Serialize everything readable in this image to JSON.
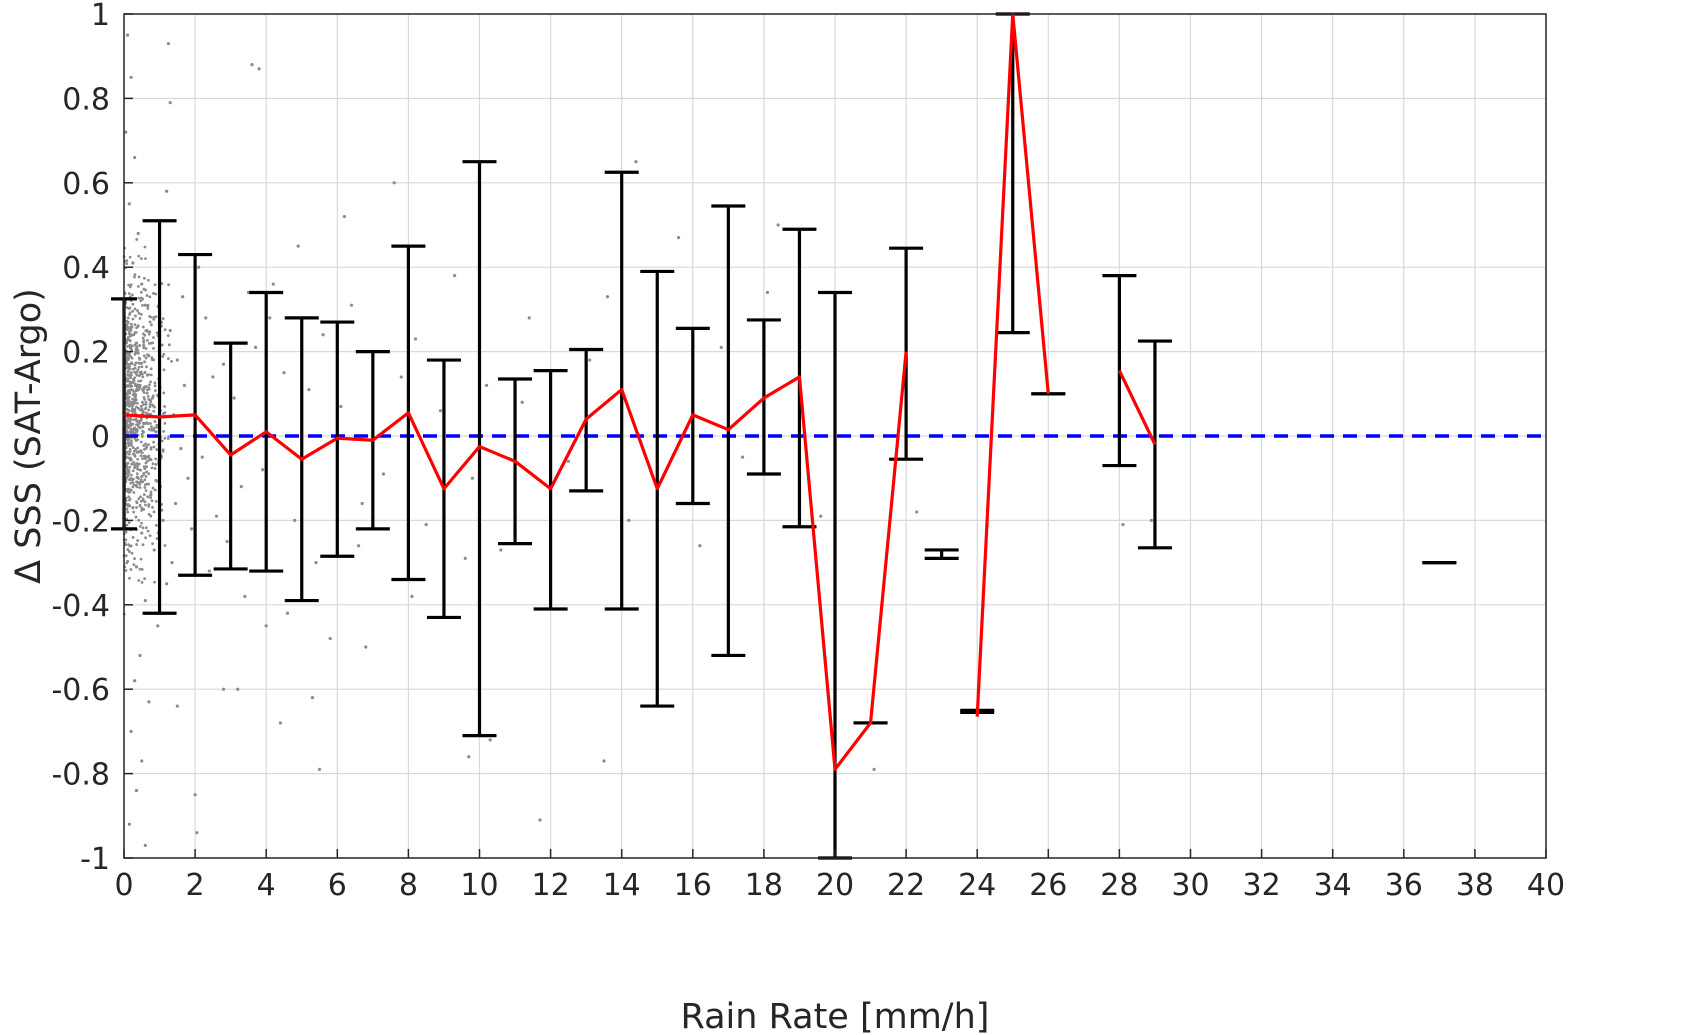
{
  "chart_data": {
    "type": "scatter",
    "title": "",
    "xlabel": "Rain Rate [mm/h]",
    "ylabel": "Δ SSS (SAT-Argo)",
    "xlim": [
      0,
      40
    ],
    "ylim": [
      -1,
      1
    ],
    "x_ticks": [
      0,
      2,
      4,
      6,
      8,
      10,
      12,
      14,
      16,
      18,
      20,
      22,
      24,
      26,
      28,
      30,
      32,
      34,
      36,
      38,
      40
    ],
    "y_ticks": [
      -1,
      -0.8,
      -0.6,
      -0.4,
      -0.2,
      0,
      0.2,
      0.4,
      0.6,
      0.8,
      1
    ],
    "y_tick_labels": [
      "-1",
      "-0.8",
      "-0.6",
      "-0.4",
      "-0.2",
      "0",
      "0.2",
      "0.4",
      "0.6",
      "0.8",
      "1"
    ],
    "grid": true,
    "reference_line": {
      "y": 0,
      "style": "dashed",
      "color": "#0000ff"
    },
    "scatter_color": "#8c8c8c",
    "errorbar_color": "#000000",
    "mean_line_color": "#ff0000",
    "scatter_points": [
      [
        0.1,
        0.95
      ],
      [
        0.2,
        0.85
      ],
      [
        0.05,
        0.72
      ],
      [
        0.3,
        0.66
      ],
      [
        0.15,
        0.55
      ],
      [
        0.4,
        0.48
      ],
      [
        0.25,
        0.41
      ],
      [
        0.5,
        0.36
      ],
      [
        0.6,
        0.31
      ],
      [
        0.1,
        0.27
      ],
      [
        0.35,
        0.22
      ],
      [
        0.7,
        0.19
      ],
      [
        0.2,
        0.15
      ],
      [
        0.45,
        0.12
      ],
      [
        0.8,
        0.09
      ],
      [
        0.3,
        0.06
      ],
      [
        0.55,
        0.03
      ],
      [
        0.9,
        0.01
      ],
      [
        0.15,
        -0.02
      ],
      [
        0.65,
        -0.05
      ],
      [
        1.0,
        -0.08
      ],
      [
        0.4,
        -0.11
      ],
      [
        0.75,
        -0.14
      ],
      [
        0.25,
        -0.17
      ],
      [
        1.1,
        -0.2
      ],
      [
        0.5,
        -0.23
      ],
      [
        0.85,
        -0.27
      ],
      [
        0.35,
        -0.31
      ],
      [
        1.2,
        -0.35
      ],
      [
        0.6,
        -0.39
      ],
      [
        0.95,
        -0.45
      ],
      [
        0.45,
        -0.52
      ],
      [
        0.3,
        -0.58
      ],
      [
        0.7,
        -0.63
      ],
      [
        0.2,
        -0.7
      ],
      [
        0.5,
        -0.77
      ],
      [
        0.35,
        -0.84
      ],
      [
        0.15,
        -0.92
      ],
      [
        0.6,
        -0.97
      ],
      [
        1.3,
        0.25
      ],
      [
        1.5,
        0.18
      ],
      [
        1.7,
        0.12
      ],
      [
        1.4,
        0.05
      ],
      [
        1.6,
        -0.03
      ],
      [
        1.8,
        -0.1
      ],
      [
        1.45,
        -0.16
      ],
      [
        1.9,
        -0.22
      ],
      [
        1.35,
        -0.3
      ],
      [
        1.65,
        0.33
      ],
      [
        2.1,
        0.4
      ],
      [
        1.25,
        0.93
      ],
      [
        1.3,
        0.79
      ],
      [
        1.2,
        0.58
      ],
      [
        2.3,
        0.28
      ],
      [
        2.5,
        0.14
      ],
      [
        2.2,
        -0.05
      ],
      [
        2.6,
        -0.19
      ],
      [
        2.4,
        -0.32
      ],
      [
        2.0,
        -0.85
      ],
      [
        2.05,
        -0.94
      ],
      [
        1.5,
        -0.64
      ],
      [
        2.8,
        0.17
      ],
      [
        3.1,
        0.09
      ],
      [
        3.3,
        -0.12
      ],
      [
        2.9,
        -0.25
      ],
      [
        3.5,
        0.34
      ],
      [
        3.2,
        -0.6
      ],
      [
        3.4,
        -0.38
      ],
      [
        3.7,
        0.21
      ],
      [
        3.9,
        -0.08
      ],
      [
        4.2,
        0.36
      ],
      [
        4.5,
        0.15
      ],
      [
        4.8,
        -0.2
      ],
      [
        4.1,
        0.28
      ],
      [
        4.6,
        -0.42
      ],
      [
        4.9,
        0.45
      ],
      [
        3.6,
        0.88
      ],
      [
        3.8,
        0.87
      ],
      [
        4.4,
        -0.68
      ],
      [
        5.2,
        0.11
      ],
      [
        5.4,
        -0.3
      ],
      [
        5.6,
        0.24
      ],
      [
        5.8,
        -0.48
      ],
      [
        5.5,
        -0.79
      ],
      [
        5.3,
        -0.62
      ],
      [
        6.1,
        0.07
      ],
      [
        6.4,
        0.31
      ],
      [
        6.7,
        -0.16
      ],
      [
        6.2,
        0.52
      ],
      [
        6.6,
        -0.26
      ],
      [
        7.0,
        0.19
      ],
      [
        7.3,
        -0.09
      ],
      [
        7.6,
        0.6
      ],
      [
        7.8,
        0.14
      ],
      [
        8.2,
        0.23
      ],
      [
        8.5,
        -0.21
      ],
      [
        8.9,
        0.06
      ],
      [
        9.3,
        0.38
      ],
      [
        9.6,
        -0.29
      ],
      [
        9.8,
        -0.1
      ],
      [
        10.2,
        0.12
      ],
      [
        10.6,
        -0.27
      ],
      [
        11.2,
        0.08
      ],
      [
        11.4,
        0.28
      ],
      [
        11.7,
        -0.91
      ],
      [
        12.5,
        -0.06
      ],
      [
        13.1,
        0.18
      ],
      [
        13.6,
        0.33
      ],
      [
        14.4,
        0.65
      ],
      [
        14.2,
        -0.2
      ],
      [
        15.6,
        0.47
      ],
      [
        16.2,
        -0.26
      ],
      [
        16.8,
        0.21
      ],
      [
        17.4,
        -0.05
      ],
      [
        18.1,
        0.34
      ],
      [
        18.4,
        0.5
      ],
      [
        19.6,
        -0.19
      ],
      [
        21.1,
        -0.79
      ],
      [
        22.3,
        -0.18
      ],
      [
        28.1,
        -0.21
      ],
      [
        28.9,
        -0.2
      ],
      [
        9.7,
        -0.76
      ],
      [
        10.3,
        -0.72
      ],
      [
        13.5,
        -0.77
      ],
      [
        2.8,
        -0.6
      ],
      [
        4.0,
        -0.45
      ],
      [
        6.8,
        -0.5
      ],
      [
        8.1,
        -0.38
      ]
    ],
    "series": [
      {
        "name": "",
        "x": [
          0,
          1,
          2,
          3,
          4,
          5,
          6,
          7,
          8,
          9,
          10,
          11,
          12,
          13,
          14,
          15,
          16,
          17,
          18,
          19,
          20,
          21,
          22,
          23,
          24,
          25,
          26,
          28,
          29,
          37
        ],
        "mean": [
          0.05,
          0.045,
          0.05,
          -0.045,
          0.01,
          -0.055,
          -0.005,
          -0.01,
          0.055,
          -0.125,
          -0.025,
          -0.06,
          -0.125,
          0.04,
          0.11,
          -0.125,
          0.05,
          0.015,
          0.09,
          0.14,
          -0.79,
          -0.68,
          0.2,
          null,
          -0.665,
          1.0,
          0.1,
          0.155,
          -0.02,
          null
        ],
        "lower": [
          -0.22,
          -0.42,
          -0.33,
          -0.315,
          -0.32,
          -0.39,
          -0.285,
          -0.22,
          -0.34,
          -0.43,
          -0.71,
          -0.255,
          -0.41,
          -0.13,
          -0.41,
          -0.64,
          -0.16,
          -0.52,
          -0.09,
          -0.215,
          -1.0,
          -0.68,
          -0.055,
          -0.29,
          -0.655,
          0.245,
          0.1,
          -0.07,
          -0.265,
          -0.3
        ],
        "upper": [
          0.325,
          0.51,
          0.43,
          0.22,
          0.34,
          0.28,
          0.27,
          0.2,
          0.45,
          0.18,
          0.65,
          0.135,
          0.155,
          0.205,
          0.625,
          0.39,
          0.255,
          0.545,
          0.275,
          0.49,
          0.34,
          -0.68,
          0.445,
          -0.27,
          -0.65,
          1.0,
          0.1,
          0.38,
          0.225,
          -0.3
        ]
      }
    ]
  }
}
